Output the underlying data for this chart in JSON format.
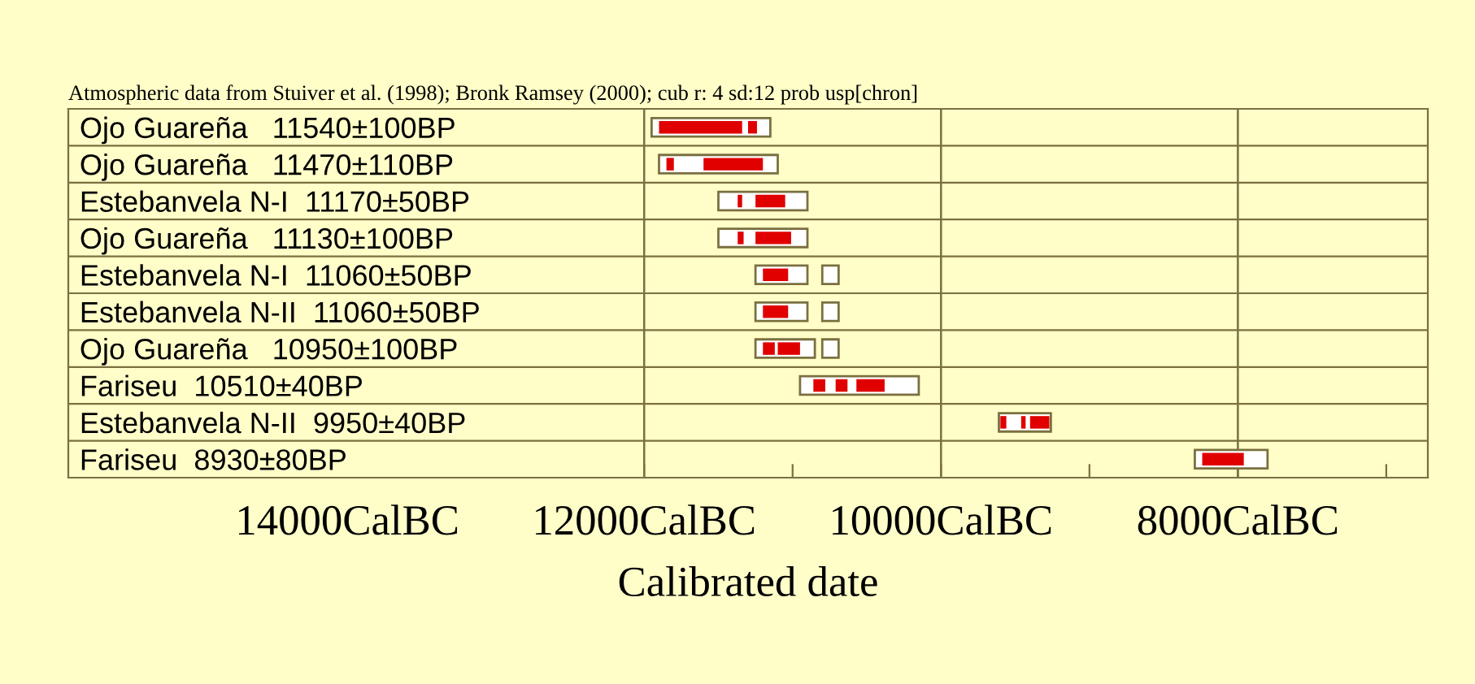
{
  "chart_data": {
    "type": "bar",
    "orientation": "horizontal",
    "title": "Atmospheric data from Stuiver et al. (1998); Bronk Ramsey (2000); cub r: 4 sd:12 prob usp[chron]",
    "xlabel": "Calibrated date",
    "categories": [
      "Ojo Guareña   11540±100BP",
      "Ojo Guareña   11470±110BP",
      "Estebanvela N-I  11170±50BP",
      "Ojo Guareña   11130±100BP",
      "Estebanvela N-I  11060±50BP",
      "Estebanvela N-II  11060±50BP",
      "Ojo Guareña   10950±100BP",
      "Fariseu  10510±40BP",
      "Estebanvela N-II  9950±40BP",
      "Fariseu  8930±80BP"
    ],
    "series": [
      {
        "color": "#ffffff",
        "base": [
          11150,
          11100,
          10900,
          10900,
          10900,
          10900,
          10850,
          10150,
          9260,
          7800
        ],
        "values": [
          800,
          800,
          600,
          600,
          350,
          350,
          400,
          800,
          350,
          490
        ]
      },
      {
        "color": "#ffffff",
        "base": [
          null,
          null,
          null,
          null,
          10690,
          10690,
          10690,
          null,
          null,
          null
        ],
        "values": [
          null,
          null,
          null,
          null,
          110,
          110,
          110,
          null,
          null,
          null
        ]
      },
      {
        "color": "#e00000",
        "base": [
          11340,
          11800,
          11340,
          11330,
          11030,
          11030,
          11120,
          10780,
          9560,
          7960
        ],
        "values": [
          560,
          50,
          30,
          40,
          170,
          170,
          80,
          80,
          40,
          280
        ]
      },
      {
        "color": "#e00000",
        "base": [
          11240,
          11200,
          11050,
          11010,
          null,
          null,
          10950,
          10630,
          9430,
          null
        ],
        "values": [
          60,
          400,
          200,
          240,
          null,
          null,
          150,
          80,
          30,
          null
        ]
      },
      {
        "color": "#e00000",
        "base": [
          null,
          null,
          null,
          null,
          null,
          null,
          null,
          10380,
          9270,
          null
        ],
        "values": [
          null,
          null,
          null,
          null,
          null,
          null,
          null,
          190,
          130,
          null
        ]
      }
    ],
    "xlim": [
      15880,
      6720
    ],
    "xticks": [
      {
        "value": 14000,
        "label": "14000CalBC"
      },
      {
        "value": 12000,
        "label": "12000CalBC"
      },
      {
        "value": 10000,
        "label": "10000CalBC"
      },
      {
        "value": 8000,
        "label": "8000CalBC"
      },
      {
        "value": 11000,
        "label": null
      },
      {
        "value": 9000,
        "label": null
      },
      {
        "value": 7000,
        "label": null
      }
    ],
    "ref_lines": [
      {
        "axis": "x",
        "value": 12000,
        "color": "#7a7040"
      },
      {
        "axis": "x",
        "value": 10000,
        "color": "#7a7040"
      },
      {
        "axis": "x",
        "value": 8000,
        "color": "#7a7040"
      }
    ],
    "grid": false
  }
}
